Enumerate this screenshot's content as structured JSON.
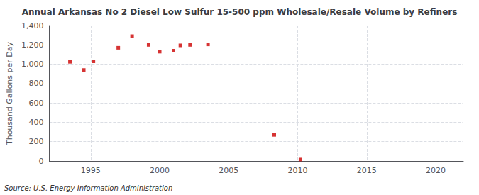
{
  "chart_data": {
    "type": "scatter",
    "title": "Annual Arkansas No 2 Diesel Low Sulfur 15-500 ppm Wholesale/Resale Volume by Refiners",
    "ylabel": "Thousand Gallons per Day",
    "source": "Source: U.S. Energy Information Administration",
    "x": [
      1993.5,
      1994.5,
      1995.2,
      1997.0,
      1998.0,
      1999.2,
      2000.0,
      2001.0,
      2001.5,
      2002.2,
      2003.5,
      2008.3,
      2010.2
    ],
    "values": [
      1025,
      940,
      1030,
      1170,
      1290,
      1200,
      1130,
      1140,
      1195,
      1200,
      1205,
      270,
      15
    ],
    "color": "#cc0000",
    "marker": "square",
    "xlim": [
      1992,
      2022
    ],
    "xticks": [
      1995,
      2000,
      2005,
      2010,
      2015,
      2020
    ],
    "ylim": [
      0,
      1400
    ],
    "yticks": [
      0,
      200,
      400,
      600,
      {
        "value": 800,
        "label": "800"
      },
      {
        "value": 1000,
        "label": "1,000"
      },
      {
        "value": 1200,
        "label": "1,200"
      },
      {
        "value": 1400,
        "label": "1,400"
      }
    ],
    "grid": true
  }
}
